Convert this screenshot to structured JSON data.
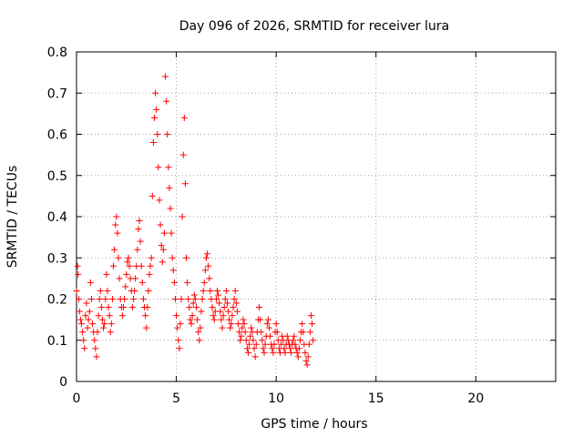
{
  "chart_data": {
    "type": "scatter",
    "title": "Day 096 of 2026, SRMTID for receiver lura",
    "xlabel": "GPS time / hours",
    "ylabel": "SRMTID / TECUs",
    "xlim": [
      0,
      24
    ],
    "ylim": [
      0,
      0.8
    ],
    "xticks": [
      0,
      5,
      10,
      15,
      20
    ],
    "yticks": [
      0,
      0.1,
      0.2,
      0.3,
      0.4,
      0.5,
      0.6,
      0.7,
      0.8
    ],
    "xtick_labels": [
      "0",
      "5",
      "10",
      "15",
      "20"
    ],
    "ytick_labels": [
      "0",
      "0.1",
      "0.2",
      "0.3",
      "0.4",
      "0.5",
      "0.6",
      "0.7",
      "0.8"
    ],
    "grid": true,
    "marker": "+",
    "color": "#ff0000",
    "series": [
      {
        "name": "SRMTID",
        "points": [
          [
            0.0,
            0.22
          ],
          [
            0.05,
            0.28
          ],
          [
            0.08,
            0.26
          ],
          [
            0.12,
            0.2
          ],
          [
            0.15,
            0.17
          ],
          [
            0.2,
            0.15
          ],
          [
            0.25,
            0.14
          ],
          [
            0.3,
            0.12
          ],
          [
            0.35,
            0.1
          ],
          [
            0.4,
            0.08
          ],
          [
            0.45,
            0.16
          ],
          [
            0.5,
            0.19
          ],
          [
            0.55,
            0.13
          ],
          [
            0.6,
            0.15
          ],
          [
            0.65,
            0.17
          ],
          [
            0.7,
            0.24
          ],
          [
            0.75,
            0.2
          ],
          [
            0.8,
            0.14
          ],
          [
            0.85,
            0.12
          ],
          [
            0.9,
            0.1
          ],
          [
            0.95,
            0.08
          ],
          [
            1.0,
            0.06
          ],
          [
            1.05,
            0.12
          ],
          [
            1.1,
            0.16
          ],
          [
            1.15,
            0.2
          ],
          [
            1.2,
            0.22
          ],
          [
            1.25,
            0.18
          ],
          [
            1.3,
            0.15
          ],
          [
            1.35,
            0.13
          ],
          [
            1.4,
            0.14
          ],
          [
            1.45,
            0.2
          ],
          [
            1.5,
            0.26
          ],
          [
            1.55,
            0.22
          ],
          [
            1.6,
            0.18
          ],
          [
            1.65,
            0.16
          ],
          [
            1.7,
            0.12
          ],
          [
            1.75,
            0.14
          ],
          [
            1.8,
            0.2
          ],
          [
            1.85,
            0.28
          ],
          [
            1.9,
            0.32
          ],
          [
            1.95,
            0.38
          ],
          [
            2.0,
            0.4
          ],
          [
            2.05,
            0.36
          ],
          [
            2.1,
            0.3
          ],
          [
            2.15,
            0.25
          ],
          [
            2.2,
            0.2
          ],
          [
            2.25,
            0.18
          ],
          [
            2.3,
            0.16
          ],
          [
            2.35,
            0.18
          ],
          [
            2.4,
            0.2
          ],
          [
            2.45,
            0.23
          ],
          [
            2.5,
            0.26
          ],
          [
            2.55,
            0.29
          ],
          [
            2.6,
            0.3
          ],
          [
            2.65,
            0.28
          ],
          [
            2.7,
            0.25
          ],
          [
            2.75,
            0.22
          ],
          [
            2.8,
            0.18
          ],
          [
            2.85,
            0.2
          ],
          [
            2.9,
            0.22
          ],
          [
            2.95,
            0.25
          ],
          [
            3.0,
            0.28
          ],
          [
            3.05,
            0.32
          ],
          [
            3.1,
            0.37
          ],
          [
            3.15,
            0.39
          ],
          [
            3.2,
            0.34
          ],
          [
            3.25,
            0.28
          ],
          [
            3.3,
            0.24
          ],
          [
            3.35,
            0.2
          ],
          [
            3.4,
            0.18
          ],
          [
            3.45,
            0.16
          ],
          [
            3.5,
            0.13
          ],
          [
            3.55,
            0.18
          ],
          [
            3.6,
            0.22
          ],
          [
            3.65,
            0.26
          ],
          [
            3.7,
            0.28
          ],
          [
            3.75,
            0.3
          ],
          [
            3.8,
            0.45
          ],
          [
            3.85,
            0.58
          ],
          [
            3.9,
            0.64
          ],
          [
            3.95,
            0.7
          ],
          [
            4.0,
            0.66
          ],
          [
            4.05,
            0.6
          ],
          [
            4.1,
            0.52
          ],
          [
            4.15,
            0.44
          ],
          [
            4.2,
            0.38
          ],
          [
            4.25,
            0.33
          ],
          [
            4.3,
            0.29
          ],
          [
            4.35,
            0.32
          ],
          [
            4.4,
            0.36
          ],
          [
            4.45,
            0.74
          ],
          [
            4.5,
            0.68
          ],
          [
            4.55,
            0.6
          ],
          [
            4.6,
            0.52
          ],
          [
            4.65,
            0.47
          ],
          [
            4.7,
            0.42
          ],
          [
            4.75,
            0.36
          ],
          [
            4.8,
            0.3
          ],
          [
            4.85,
            0.27
          ],
          [
            4.9,
            0.24
          ],
          [
            4.95,
            0.2
          ],
          [
            5.0,
            0.16
          ],
          [
            5.05,
            0.13
          ],
          [
            5.1,
            0.1
          ],
          [
            5.15,
            0.08
          ],
          [
            5.2,
            0.14
          ],
          [
            5.25,
            0.2
          ],
          [
            5.3,
            0.4
          ],
          [
            5.35,
            0.55
          ],
          [
            5.4,
            0.64
          ],
          [
            5.45,
            0.48
          ],
          [
            5.5,
            0.3
          ],
          [
            5.55,
            0.24
          ],
          [
            5.6,
            0.2
          ],
          [
            5.65,
            0.18
          ],
          [
            5.7,
            0.15
          ],
          [
            5.75,
            0.14
          ],
          [
            5.8,
            0.16
          ],
          [
            5.85,
            0.19
          ],
          [
            5.9,
            0.21
          ],
          [
            5.95,
            0.2
          ],
          [
            6.0,
            0.18
          ],
          [
            6.05,
            0.15
          ],
          [
            6.1,
            0.12
          ],
          [
            6.15,
            0.1
          ],
          [
            6.2,
            0.13
          ],
          [
            6.25,
            0.17
          ],
          [
            6.3,
            0.2
          ],
          [
            6.35,
            0.22
          ],
          [
            6.4,
            0.24
          ],
          [
            6.45,
            0.27
          ],
          [
            6.5,
            0.3
          ],
          [
            6.55,
            0.31
          ],
          [
            6.6,
            0.28
          ],
          [
            6.65,
            0.25
          ],
          [
            6.7,
            0.22
          ],
          [
            6.75,
            0.2
          ],
          [
            6.8,
            0.18
          ],
          [
            6.85,
            0.16
          ],
          [
            6.9,
            0.15
          ],
          [
            6.95,
            0.17
          ],
          [
            7.0,
            0.2
          ],
          [
            7.05,
            0.22
          ],
          [
            7.1,
            0.21
          ],
          [
            7.15,
            0.19
          ],
          [
            7.2,
            0.17
          ],
          [
            7.25,
            0.15
          ],
          [
            7.3,
            0.13
          ],
          [
            7.35,
            0.16
          ],
          [
            7.4,
            0.18
          ],
          [
            7.45,
            0.2
          ],
          [
            7.5,
            0.22
          ],
          [
            7.55,
            0.19
          ],
          [
            7.6,
            0.17
          ],
          [
            7.65,
            0.15
          ],
          [
            7.7,
            0.13
          ],
          [
            7.75,
            0.14
          ],
          [
            7.8,
            0.16
          ],
          [
            7.85,
            0.18
          ],
          [
            7.9,
            0.2
          ],
          [
            7.95,
            0.22
          ],
          [
            8.0,
            0.19
          ],
          [
            8.05,
            0.17
          ],
          [
            8.1,
            0.14
          ],
          [
            8.15,
            0.12
          ],
          [
            8.2,
            0.1
          ],
          [
            8.25,
            0.11
          ],
          [
            8.3,
            0.13
          ],
          [
            8.35,
            0.15
          ],
          [
            8.4,
            0.14
          ],
          [
            8.45,
            0.12
          ],
          [
            8.5,
            0.1
          ],
          [
            8.55,
            0.08
          ],
          [
            8.6,
            0.07
          ],
          [
            8.65,
            0.09
          ],
          [
            8.7,
            0.11
          ],
          [
            8.75,
            0.13
          ],
          [
            8.8,
            0.12
          ],
          [
            8.85,
            0.1
          ],
          [
            8.9,
            0.08
          ],
          [
            8.95,
            0.06
          ],
          [
            9.0,
            0.09
          ],
          [
            9.05,
            0.12
          ],
          [
            9.1,
            0.15
          ],
          [
            9.15,
            0.18
          ],
          [
            9.2,
            0.15
          ],
          [
            9.25,
            0.12
          ],
          [
            9.3,
            0.1
          ],
          [
            9.35,
            0.08
          ],
          [
            9.4,
            0.07
          ],
          [
            9.45,
            0.09
          ],
          [
            9.5,
            0.11
          ],
          [
            9.55,
            0.14
          ],
          [
            9.6,
            0.15
          ],
          [
            9.65,
            0.13
          ],
          [
            9.7,
            0.11
          ],
          [
            9.75,
            0.09
          ],
          [
            9.8,
            0.08
          ],
          [
            9.85,
            0.07
          ],
          [
            9.9,
            0.09
          ],
          [
            9.95,
            0.12
          ],
          [
            10.0,
            0.14
          ],
          [
            10.05,
            0.12
          ],
          [
            10.1,
            0.1
          ],
          [
            10.15,
            0.08
          ],
          [
            10.2,
            0.07
          ],
          [
            10.25,
            0.09
          ],
          [
            10.3,
            0.11
          ],
          [
            10.35,
            0.1
          ],
          [
            10.4,
            0.08
          ],
          [
            10.45,
            0.07
          ],
          [
            10.5,
            0.09
          ],
          [
            10.55,
            0.11
          ],
          [
            10.6,
            0.1
          ],
          [
            10.65,
            0.09
          ],
          [
            10.7,
            0.08
          ],
          [
            10.75,
            0.07
          ],
          [
            10.8,
            0.09
          ],
          [
            10.85,
            0.1
          ],
          [
            10.9,
            0.11
          ],
          [
            10.95,
            0.09
          ],
          [
            11.0,
            0.08
          ],
          [
            11.05,
            0.07
          ],
          [
            11.1,
            0.06
          ],
          [
            11.15,
            0.08
          ],
          [
            11.2,
            0.1
          ],
          [
            11.25,
            0.12
          ],
          [
            11.3,
            0.14
          ],
          [
            11.35,
            0.12
          ],
          [
            11.4,
            0.09
          ],
          [
            11.45,
            0.07
          ],
          [
            11.5,
            0.05
          ],
          [
            11.55,
            0.04
          ],
          [
            11.6,
            0.06
          ],
          [
            11.65,
            0.09
          ],
          [
            11.7,
            0.12
          ],
          [
            11.75,
            0.16
          ],
          [
            11.8,
            0.14
          ],
          [
            11.85,
            0.1
          ]
        ]
      }
    ]
  }
}
